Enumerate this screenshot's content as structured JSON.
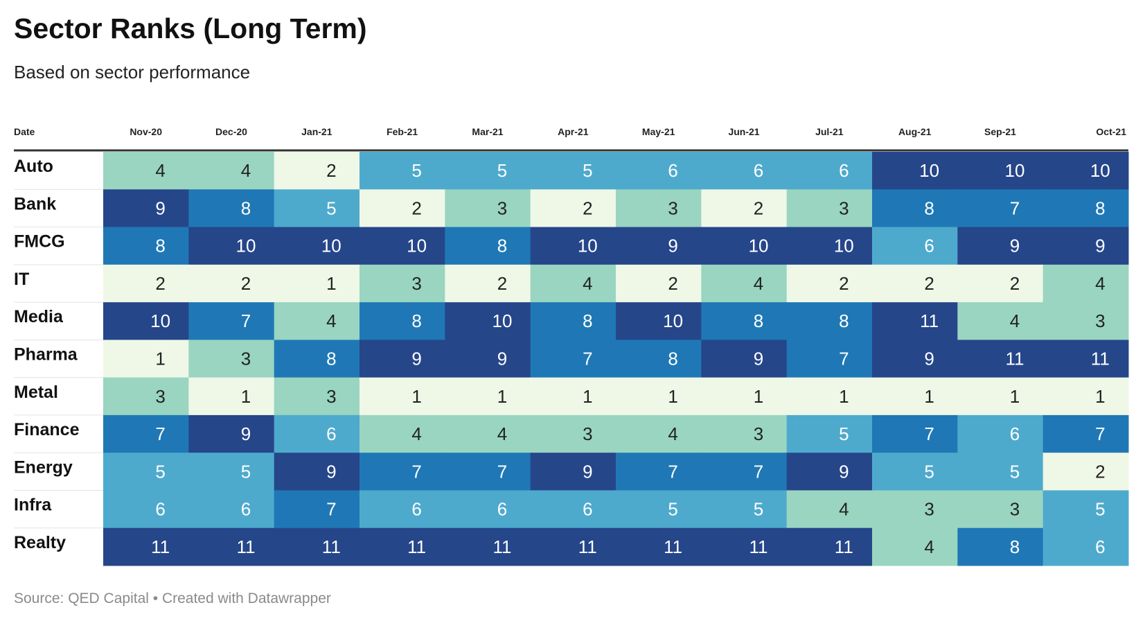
{
  "title": "Sector Ranks (Long Term)",
  "subtitle": "Based on sector performance",
  "source": "Source: QED Capital • Created with Datawrapper",
  "chart_data": {
    "type": "heatmap",
    "row_header": "Date",
    "columns": [
      "Nov-20",
      "Dec-20",
      "Jan-21",
      "Feb-21",
      "Mar-21",
      "Apr-21",
      "May-21",
      "Jun-21",
      "Jul-21",
      "Aug-21",
      "Sep-21",
      "Oct-21"
    ],
    "rows": [
      "Auto",
      "Bank",
      "FMCG",
      "IT",
      "Media",
      "Pharma",
      "Metal",
      "Finance",
      "Energy",
      "Infra",
      "Realty"
    ],
    "values": [
      [
        4,
        4,
        2,
        5,
        5,
        5,
        6,
        6,
        6,
        10,
        10,
        10
      ],
      [
        9,
        8,
        5,
        2,
        3,
        2,
        3,
        2,
        3,
        8,
        7,
        8
      ],
      [
        8,
        10,
        10,
        10,
        8,
        10,
        9,
        10,
        10,
        6,
        9,
        9
      ],
      [
        2,
        2,
        1,
        3,
        2,
        4,
        2,
        4,
        2,
        2,
        2,
        4
      ],
      [
        10,
        7,
        4,
        8,
        10,
        8,
        10,
        8,
        8,
        11,
        4,
        3
      ],
      [
        1,
        3,
        8,
        9,
        9,
        7,
        8,
        9,
        7,
        9,
        11,
        11
      ],
      [
        3,
        1,
        3,
        1,
        1,
        1,
        1,
        1,
        1,
        1,
        1,
        1
      ],
      [
        7,
        9,
        6,
        4,
        4,
        3,
        4,
        3,
        5,
        7,
        6,
        7
      ],
      [
        5,
        5,
        9,
        7,
        7,
        9,
        7,
        7,
        9,
        5,
        5,
        2
      ],
      [
        6,
        6,
        7,
        6,
        6,
        6,
        5,
        5,
        4,
        3,
        3,
        5
      ],
      [
        11,
        11,
        11,
        11,
        11,
        11,
        11,
        11,
        11,
        4,
        8,
        6
      ]
    ],
    "color_scale": {
      "1": "#eff7e6",
      "2": "#eff7e6",
      "3": "#99d5c1",
      "4": "#99d5c1",
      "5": "#4eaacd",
      "6": "#4eaacd",
      "7": "#1f78b5",
      "8": "#1f78b5",
      "9": "#26468a",
      "10": "#26468a",
      "11": "#26468a"
    },
    "dark_text_color": "#222222",
    "light_text_color": "#ffffff",
    "light_text_min_value": 5
  }
}
